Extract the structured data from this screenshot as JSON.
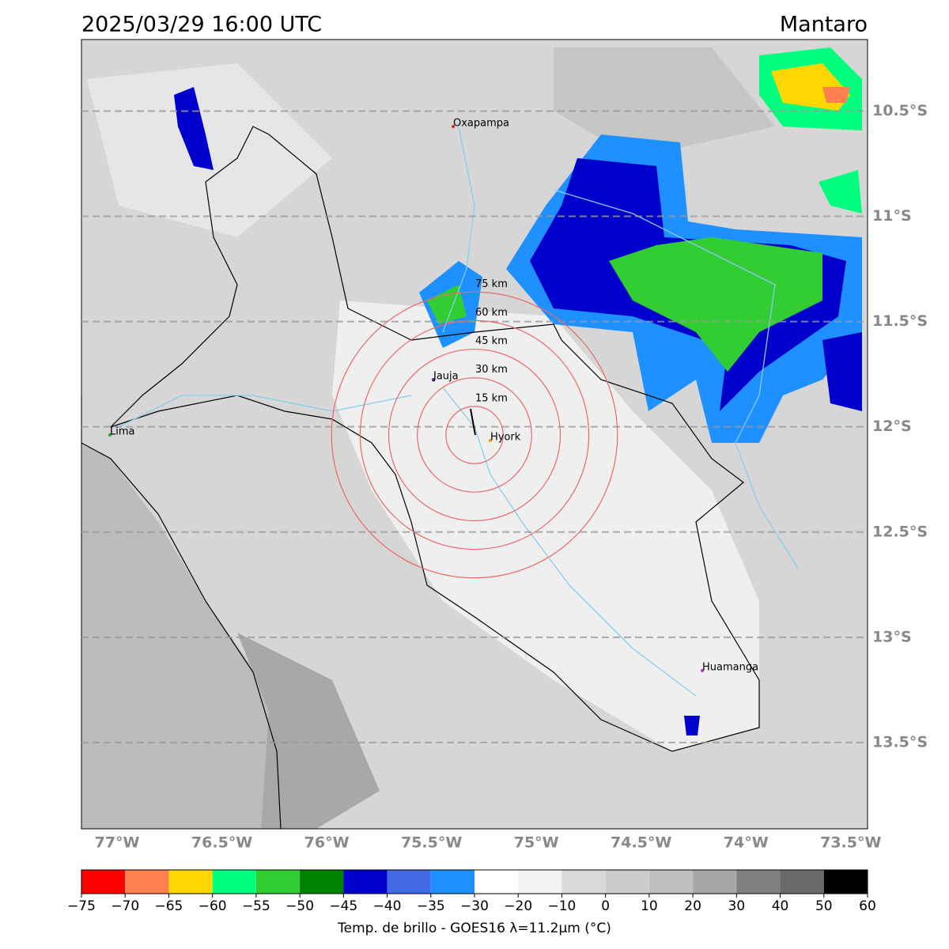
{
  "header": {
    "title": "2025/03/29 16:00 UTC",
    "region": "Mantaro"
  },
  "map": {
    "xlim": [
      -77.17,
      -73.42
    ],
    "ylim": [
      -13.91,
      -10.16
    ],
    "xticks": [
      {
        "value": -77,
        "label": "77°W"
      },
      {
        "value": -76.5,
        "label": "76.5°W"
      },
      {
        "value": -76,
        "label": "76°W"
      },
      {
        "value": -75.5,
        "label": "75.5°W"
      },
      {
        "value": -75,
        "label": "75°W"
      },
      {
        "value": -74.5,
        "label": "74.5°W"
      },
      {
        "value": -74,
        "label": "74°W"
      },
      {
        "value": -73.5,
        "label": "73.5°W"
      }
    ],
    "yticks": [
      {
        "value": -10.5,
        "label": "10.5°S"
      },
      {
        "value": -11,
        "label": "11°S"
      },
      {
        "value": -11.5,
        "label": "11.5°S"
      },
      {
        "value": -12,
        "label": "12°S"
      },
      {
        "value": -12.5,
        "label": "12.5°S"
      },
      {
        "value": -13,
        "label": "13°S"
      },
      {
        "value": -13.5,
        "label": "13.5°S"
      }
    ],
    "grid": true,
    "cities": [
      "Oxapampa",
      "Jauja",
      "Hyork",
      "Lima",
      "Huamanga"
    ],
    "rings": [
      {
        "value": 15,
        "label": "15 km"
      },
      {
        "value": 30,
        "label": "30 km"
      },
      {
        "value": 45,
        "label": "45 km"
      },
      {
        "value": 60,
        "label": "60 km"
      },
      {
        "value": 75,
        "label": "75 km"
      }
    ],
    "ring_color": "#e8686a"
  },
  "colorbar": {
    "label": "Temp. de brillo - GOES16 λ=11.2μm (°C)",
    "ticks": [
      {
        "value": -75,
        "label": "−75"
      },
      {
        "value": -70,
        "label": "−70"
      },
      {
        "value": -65,
        "label": "−65"
      },
      {
        "value": -60,
        "label": "−60"
      },
      {
        "value": -55,
        "label": "−55"
      },
      {
        "value": -50,
        "label": "−50"
      },
      {
        "value": -45,
        "label": "−45"
      },
      {
        "value": -40,
        "label": "−40"
      },
      {
        "value": -35,
        "label": "−35"
      },
      {
        "value": -30,
        "label": "−30"
      },
      {
        "value": -20,
        "label": "−20"
      },
      {
        "value": -10,
        "label": "−10"
      },
      0,
      10,
      20,
      30,
      40,
      50,
      60
    ],
    "colors": [
      "#ff0000",
      "#ff7f50",
      "#ffd700",
      "#00ff7f",
      "#32cd32",
      "#008000",
      "#0000cd",
      "#4169e1",
      "#1e90ff",
      "#ffffff",
      "#f2f2f2",
      "#d9d9d9",
      "#cccccc",
      "#bfbfbf",
      "#a6a6a6",
      "#808080",
      "#696969",
      "#000000"
    ]
  }
}
